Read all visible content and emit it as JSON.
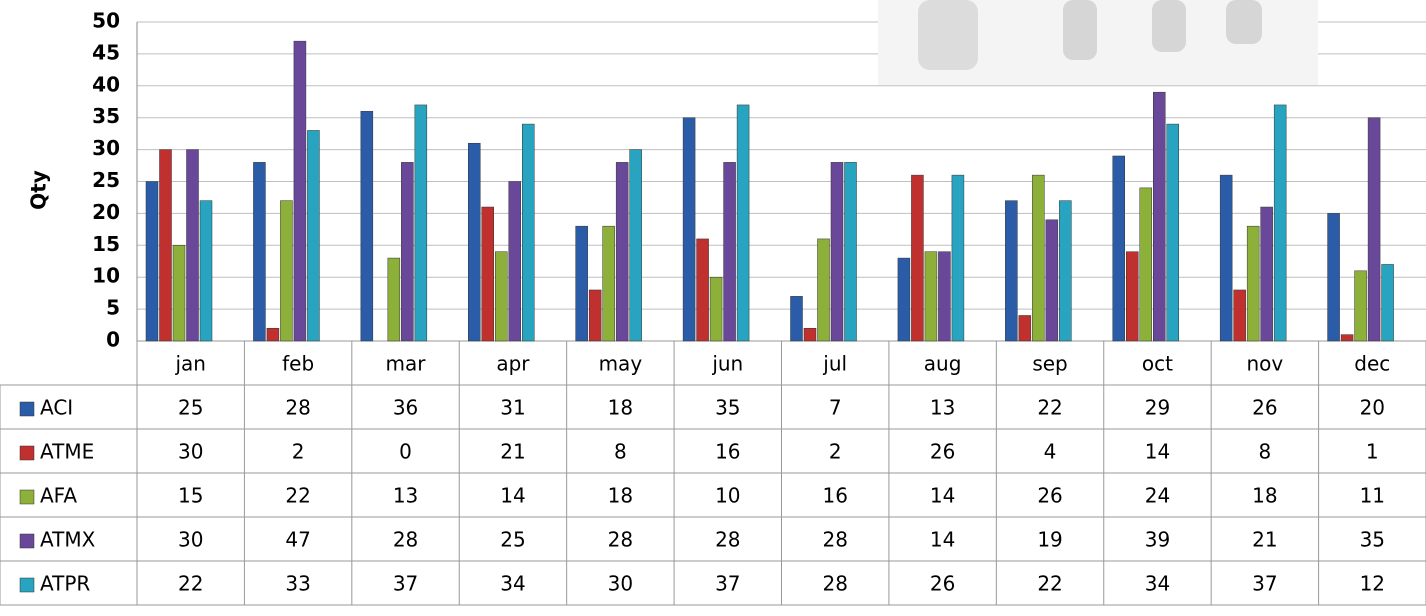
{
  "chart_data": {
    "type": "bar",
    "y_label": "Qty",
    "categories": [
      "jan",
      "feb",
      "mar",
      "apr",
      "may",
      "jun",
      "jul",
      "aug",
      "sep",
      "oct",
      "nov",
      "dec"
    ],
    "series": [
      {
        "name": "ACI",
        "color": "#2a5ca8",
        "values": [
          25,
          28,
          36,
          31,
          18,
          35,
          7,
          13,
          22,
          29,
          26,
          20
        ]
      },
      {
        "name": "ATME",
        "color": "#c0302e",
        "values": [
          30,
          2,
          0,
          21,
          8,
          16,
          2,
          26,
          4,
          14,
          8,
          1
        ]
      },
      {
        "name": "AFA",
        "color": "#8cb03a",
        "values": [
          15,
          22,
          13,
          14,
          18,
          10,
          16,
          14,
          26,
          24,
          18,
          11
        ]
      },
      {
        "name": "ATMX",
        "color": "#6a4899",
        "values": [
          30,
          47,
          28,
          25,
          28,
          28,
          28,
          14,
          19,
          39,
          21,
          35
        ]
      },
      {
        "name": "ATPR",
        "color": "#28a4c0",
        "values": [
          22,
          33,
          37,
          34,
          30,
          37,
          28,
          26,
          22,
          34,
          37,
          12
        ]
      }
    ],
    "ylim": [
      0,
      50
    ],
    "yticks": [
      0,
      5,
      10,
      15,
      20,
      25,
      30,
      35,
      40,
      45,
      50
    ],
    "grid": true
  }
}
